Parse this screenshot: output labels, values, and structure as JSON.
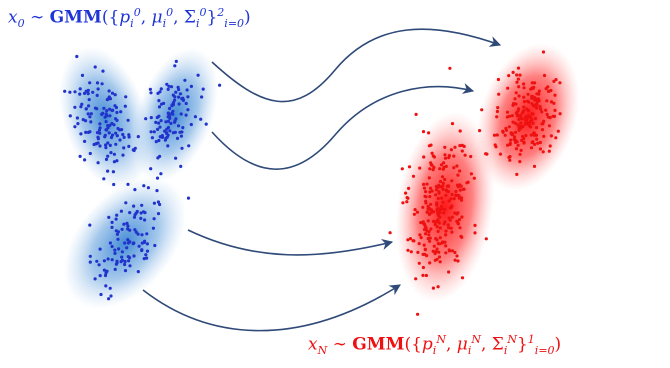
{
  "colors": {
    "source": "#2233cc",
    "source_cloud": "#3b86d4",
    "target": "#ee1111",
    "target_cloud": "#ff2020",
    "arrow": "#2f4a78"
  },
  "top_label": {
    "var": "x",
    "var_sub": "0",
    "sim": "∼",
    "model": "GMM",
    "open": "({",
    "p": "p",
    "mu": "μ",
    "sigma": "Σ",
    "idx": "i",
    "time": "0",
    "comma": ",",
    "close": "}",
    "range_sup": "2",
    "range_sub": "i=0",
    "end": ")"
  },
  "bottom_label": {
    "var": "x",
    "var_sub": "N",
    "sim": "∼",
    "model": "GMM",
    "open": "({",
    "p": "p",
    "mu": "μ",
    "sigma": "Σ",
    "idx": "i",
    "time": "N",
    "comma": ",",
    "close": "}",
    "range_sup": "1",
    "range_sub": "i=0",
    "end": ")"
  }
}
